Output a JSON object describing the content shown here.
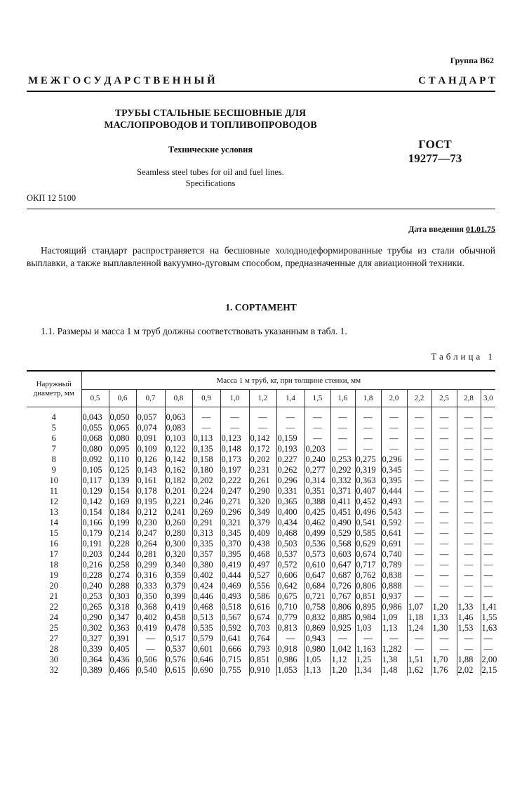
{
  "header": {
    "group": "Группа В62",
    "banner_words": [
      "М Е Ж Г О С У Д А Р С Т В Е Н Н Ы Й",
      "С Т А Н Д А Р Т"
    ],
    "title_lines": [
      "ТРУБЫ СТАЛЬНЫЕ БЕСШОВНЫЕ ДЛЯ",
      "МАСЛОПРОВОДОВ И ТОПЛИВОПРОВОДОВ"
    ],
    "subtitle": "Технические условия",
    "english_lines": [
      "Seamless steel tubes for oil and fuel lines.",
      "Specifications"
    ],
    "gost_lines": [
      "ГОСТ",
      "19277—73"
    ],
    "okp": "ОКП 12 5100",
    "date_label": "Дата введения ",
    "date_value": "01.01.75"
  },
  "body": {
    "intro": "Настоящий стандарт распространяется на бесшовные холоднодеформированные трубы из стали обычной выплавки, а также выплавленной вакуумно-дуговым способом, предназначенные для авиационной техники.",
    "section_title": "1. СОРТАМЕНТ",
    "clause_1_1": "1.1. Размеры и масса 1 м труб должны соответствовать указанным в табл. 1.",
    "table_caption": "Таблица 1"
  },
  "table": {
    "diameter_header": "Наружный диаметр, мм",
    "mass_header": "Масса 1 м труб, кг, при толщине стенки, мм",
    "thicknesses": [
      "0,5",
      "0,6",
      "0,7",
      "0,8",
      "0,9",
      "1,0",
      "1,2",
      "1,4",
      "1,5",
      "1,6",
      "1,8",
      "2,0",
      "2,2",
      "2,5",
      "2,8",
      "3,0"
    ],
    "rows": [
      [
        "4",
        "0,043",
        "0,050",
        "0,057",
        "0,063",
        "—",
        "—",
        "—",
        "—",
        "—",
        "—",
        "—",
        "—",
        "—",
        "—",
        "—",
        "—"
      ],
      [
        "5",
        "0,055",
        "0,065",
        "0,074",
        "0,083",
        "—",
        "—",
        "—",
        "—",
        "—",
        "—",
        "—",
        "—",
        "—",
        "—",
        "—",
        "—"
      ],
      [
        "6",
        "0,068",
        "0,080",
        "0,091",
        "0,103",
        "0,113",
        "0,123",
        "0,142",
        "0,159",
        "—",
        "—",
        "—",
        "—",
        "—",
        "—",
        "—",
        "—"
      ],
      [
        "7",
        "0,080",
        "0,095",
        "0,109",
        "0,122",
        "0,135",
        "0,148",
        "0,172",
        "0,193",
        "0,203",
        "—",
        "—",
        "—",
        "—",
        "—",
        "—",
        "—"
      ],
      [
        "8",
        "0,092",
        "0,110",
        "0,126",
        "0,142",
        "0,158",
        "0,173",
        "0,202",
        "0,227",
        "0,240",
        "0,253",
        "0,275",
        "0,296",
        "—",
        "—",
        "—",
        "—"
      ],
      [
        "9",
        "0,105",
        "0,125",
        "0,143",
        "0,162",
        "0,180",
        "0,197",
        "0,231",
        "0,262",
        "0,277",
        "0,292",
        "0,319",
        "0,345",
        "—",
        "—",
        "—",
        "—"
      ],
      [
        "10",
        "0,117",
        "0,139",
        "0,161",
        "0,182",
        "0,202",
        "0,222",
        "0,261",
        "0,296",
        "0,314",
        "0,332",
        "0,363",
        "0,395",
        "—",
        "—",
        "—",
        "—"
      ],
      [
        "11",
        "0,129",
        "0,154",
        "0,178",
        "0,201",
        "0,224",
        "0,247",
        "0,290",
        "0,331",
        "0,351",
        "0,371",
        "0,407",
        "0,444",
        "—",
        "—",
        "—",
        "—"
      ],
      [
        "12",
        "0,142",
        "0,169",
        "0,195",
        "0,221",
        "0,246",
        "0,271",
        "0,320",
        "0,365",
        "0,388",
        "0,411",
        "0,452",
        "0,493",
        "—",
        "—",
        "—",
        "—"
      ],
      [
        "13",
        "0,154",
        "0,184",
        "0,212",
        "0,241",
        "0,269",
        "0,296",
        "0,349",
        "0,400",
        "0,425",
        "0,451",
        "0,496",
        "0,543",
        "—",
        "—",
        "—",
        "—"
      ],
      [
        "14",
        "0,166",
        "0,199",
        "0,230",
        "0,260",
        "0,291",
        "0,321",
        "0,379",
        "0,434",
        "0,462",
        "0,490",
        "0,541",
        "0,592",
        "—",
        "—",
        "—",
        "—"
      ],
      [
        "15",
        "0,179",
        "0,214",
        "0,247",
        "0,280",
        "0,313",
        "0,345",
        "0,409",
        "0,468",
        "0,499",
        "0,529",
        "0,585",
        "0,641",
        "—",
        "—",
        "—",
        "—"
      ],
      [
        "16",
        "0,191",
        "0,228",
        "0,264",
        "0,300",
        "0,335",
        "0,370",
        "0,438",
        "0,503",
        "0,536",
        "0,568",
        "0,629",
        "0,691",
        "—",
        "—",
        "—",
        "—"
      ],
      [
        "17",
        "0,203",
        "0,244",
        "0,281",
        "0,320",
        "0,357",
        "0,395",
        "0,468",
        "0,537",
        "0,573",
        "0,603",
        "0,674",
        "0,740",
        "—",
        "—",
        "—",
        "—"
      ],
      [
        "18",
        "0,216",
        "0,258",
        "0,299",
        "0,340",
        "0,380",
        "0,419",
        "0,497",
        "0,572",
        "0,610",
        "0,647",
        "0,717",
        "0,789",
        "—",
        "—",
        "—",
        "—"
      ],
      [
        "19",
        "0,228",
        "0,274",
        "0,316",
        "0,359",
        "0,402",
        "0,444",
        "0,527",
        "0,606",
        "0,647",
        "0,687",
        "0,762",
        "0,838",
        "—",
        "—",
        "—",
        "—"
      ],
      [
        "20",
        "0,240",
        "0,288",
        "0,333",
        "0,379",
        "0,424",
        "0,469",
        "0,556",
        "0,642",
        "0,684",
        "0,726",
        "0,806",
        "0,888",
        "—",
        "—",
        "—",
        "—"
      ],
      [
        "21",
        "0,253",
        "0,303",
        "0,350",
        "0,399",
        "0,446",
        "0,493",
        "0,586",
        "0,675",
        "0,721",
        "0,767",
        "0,851",
        "0,937",
        "—",
        "—",
        "—",
        "—"
      ],
      [
        "22",
        "0,265",
        "0,318",
        "0,368",
        "0,419",
        "0,468",
        "0,518",
        "0,616",
        "0,710",
        "0,758",
        "0,806",
        "0,895",
        "0,986",
        "1,07",
        "1,20",
        "1,33",
        "1,41"
      ],
      [
        "24",
        "0,290",
        "0,347",
        "0,402",
        "0,458",
        "0,513",
        "0,567",
        "0,674",
        "0,779",
        "0,832",
        "0,885",
        "0,984",
        "1,09",
        "1,18",
        "1,33",
        "1,46",
        "1,55"
      ],
      [
        "25",
        "0,302",
        "0,363",
        "0,419",
        "0,478",
        "0,535",
        "0,592",
        "0,703",
        "0,813",
        "0,869",
        "0,925",
        "1,03",
        "1,13",
        "1,24",
        "1,30",
        "1,53",
        "1,63"
      ],
      [
        "27",
        "0,327",
        "0,391",
        "—",
        "0,517",
        "0,579",
        "0,641",
        "0,764",
        "—",
        "0,943",
        "—",
        "—",
        "—",
        "—",
        "—",
        "—",
        "—"
      ],
      [
        "28",
        "0,339",
        "0,405",
        "—",
        "0,537",
        "0,601",
        "0,666",
        "0,793",
        "0,918",
        "0,980",
        "1,042",
        "1,163",
        "1,282",
        "—",
        "—",
        "—",
        "—"
      ],
      [
        "30",
        "0,364",
        "0,436",
        "0,506",
        "0,576",
        "0,646",
        "0,715",
        "0,851",
        "0,986",
        "1,05",
        "1,12",
        "1,25",
        "1,38",
        "1,51",
        "1,70",
        "1,88",
        "2,00"
      ],
      [
        "32",
        "0,389",
        "0,466",
        "0,540",
        "0,615",
        "0,690",
        "0,755",
        "0,910",
        "1,053",
        "1,13",
        "1,20",
        "1,34",
        "1,48",
        "1,62",
        "1,76",
        "2,02",
        "2,15"
      ]
    ]
  }
}
